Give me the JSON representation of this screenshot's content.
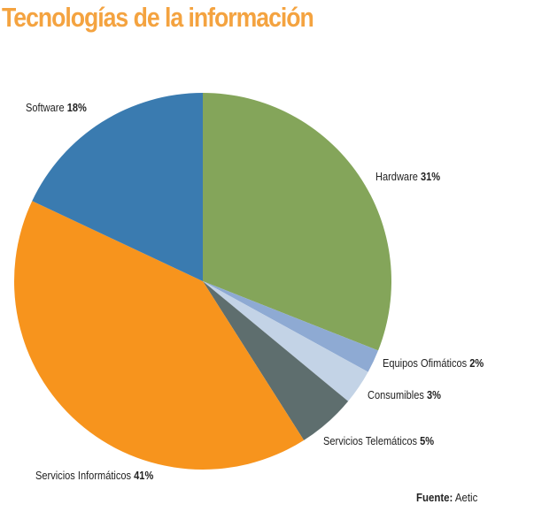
{
  "chart_data": {
    "type": "pie",
    "title": "Tecnologías de la información",
    "start": "top",
    "direction": "clockwise",
    "slices": [
      {
        "label": "Hardware",
        "value": 31,
        "value_label": "31%",
        "color": "#84a55a"
      },
      {
        "label": "Equipos Ofimáticos",
        "value": 2,
        "value_label": "2%",
        "color": "#8eaad3"
      },
      {
        "label": "Consumibles",
        "value": 3,
        "value_label": "3%",
        "color": "#c3d3e6"
      },
      {
        "label": "Servicios Telemáticos",
        "value": 5,
        "value_label": "5%",
        "color": "#5e6e6e"
      },
      {
        "label": "Servicios Informáticos",
        "value": 41,
        "value_label": "41%",
        "color": "#f7941d"
      },
      {
        "label": "Software",
        "value": 18,
        "value_label": "18%",
        "color": "#3a7bb0"
      }
    ],
    "source_label": "Fuente:",
    "source": "Aetic",
    "title_color": "#f4a340"
  }
}
